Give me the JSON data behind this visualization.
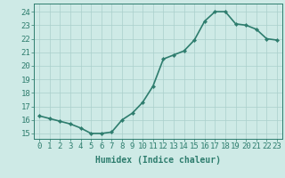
{
  "x": [
    0,
    1,
    2,
    3,
    4,
    5,
    6,
    7,
    8,
    9,
    10,
    11,
    12,
    13,
    14,
    15,
    16,
    17,
    18,
    19,
    20,
    21,
    22,
    23
  ],
  "y": [
    16.3,
    16.1,
    15.9,
    15.7,
    15.4,
    15.0,
    15.0,
    15.1,
    16.0,
    16.5,
    17.3,
    18.5,
    20.5,
    20.8,
    21.1,
    21.9,
    23.3,
    24.0,
    24.0,
    23.1,
    23.0,
    22.7,
    22.0,
    21.9
  ],
  "line_color": "#2e7d6e",
  "marker": "D",
  "marker_size": 2.2,
  "bg_color": "#ceeae6",
  "grid_color": "#aacfcb",
  "xlabel": "Humidex (Indice chaleur)",
  "ylabel_ticks": [
    15,
    16,
    17,
    18,
    19,
    20,
    21,
    22,
    23,
    24
  ],
  "xtick_labels": [
    "0",
    "1",
    "2",
    "3",
    "4",
    "5",
    "6",
    "7",
    "8",
    "9",
    "10",
    "11",
    "12",
    "13",
    "14",
    "15",
    "16",
    "17",
    "18",
    "19",
    "20",
    "21",
    "22",
    "23"
  ],
  "ylim": [
    14.6,
    24.6
  ],
  "xlim": [
    -0.5,
    23.5
  ],
  "tick_color": "#2e7d6e",
  "label_color": "#2e7d6e",
  "xlabel_fontsize": 7,
  "tick_fontsize": 6.5,
  "linewidth": 1.2
}
